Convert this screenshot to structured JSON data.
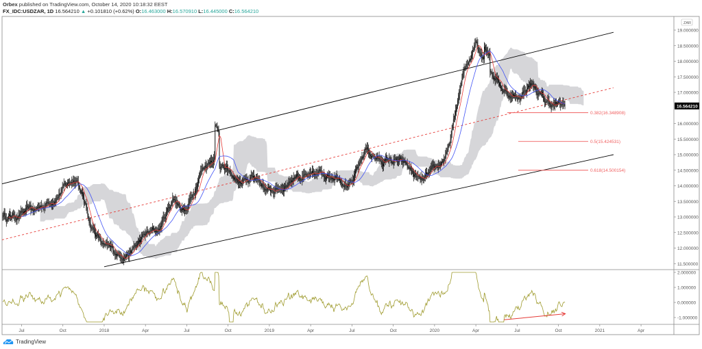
{
  "header": {
    "publisher": "Orbex",
    "published_text": "published on TradingView.com, October 14, 2020 10:18:32 EEST",
    "symbol": "FX_IDC:USDZAR, 1D",
    "last": "16.564210",
    "change": "+0.101810 (+0.62%)",
    "open_label": "O:",
    "open": "16.463000",
    "high_label": "H:",
    "high": "16.570910",
    "low_label": "L:",
    "low": "16.445000",
    "close_label": "C:",
    "close": "16.564210"
  },
  "footer": {
    "brand": "TradingView"
  },
  "colors": {
    "up_arrow": "#26a69a",
    "candles": "#000000",
    "ma_fast": "#e53935",
    "ma_slow": "#3f51f5",
    "cloud": "#c8c8cc",
    "channel": "#000000",
    "midline": "#e53935",
    "fib": "#f06060",
    "oscillator": "#9e9a2c",
    "divergence_arrow": "#e53935",
    "last_price_bg": "#000000"
  },
  "chart_data": {
    "type": "candlestick",
    "currency_label": "ZAR",
    "price_axis": {
      "ylim": [
        11.3,
        19.5
      ],
      "ticks": [
        "19.000000",
        "18.500000",
        "18.000000",
        "17.500000",
        "17.000000",
        "16.500000",
        "16.000000",
        "15.500000",
        "15.000000",
        "14.500000",
        "14.000000",
        "13.500000",
        "13.000000",
        "12.500000",
        "12.000000",
        "11.500000"
      ],
      "tick_values": [
        19.0,
        18.5,
        18.0,
        17.5,
        17.0,
        16.5,
        16.0,
        15.5,
        15.0,
        14.5,
        14.0,
        13.5,
        13.0,
        12.5,
        12.0,
        11.5
      ],
      "last_price_label": "16.564210",
      "last_price": 16.56421
    },
    "osc_axis": {
      "ylim": [
        -1.5,
        2.1
      ],
      "ticks": [
        "2.000000",
        "1.000000",
        "0.000000",
        "-1.000000"
      ],
      "tick_values": [
        2,
        1,
        0,
        -1
      ]
    },
    "x_ticks": [
      {
        "label": "Jul",
        "date": "2017-07"
      },
      {
        "label": "Oct",
        "date": "2017-10"
      },
      {
        "label": "2018",
        "date": "2018-01"
      },
      {
        "label": "Apr",
        "date": "2018-04"
      },
      {
        "label": "Jul",
        "date": "2018-07"
      },
      {
        "label": "Oct",
        "date": "2018-10"
      },
      {
        "label": "2019",
        "date": "2019-01"
      },
      {
        "label": "Apr",
        "date": "2019-04"
      },
      {
        "label": "Jul",
        "date": "2019-07"
      },
      {
        "label": "Oct",
        "date": "2019-10"
      },
      {
        "label": "2020",
        "date": "2020-01"
      },
      {
        "label": "Apr",
        "date": "2020-04"
      },
      {
        "label": "Jul",
        "date": "2020-07"
      },
      {
        "label": "Oct",
        "date": "2020-10"
      },
      {
        "label": "2021",
        "date": "2021-01"
      },
      {
        "label": "Apr",
        "date": "2021-04"
      }
    ],
    "monthly_close": [
      {
        "date": "2017-05",
        "close": 13.2
      },
      {
        "date": "2017-06",
        "close": 13.0
      },
      {
        "date": "2017-07",
        "close": 13.1
      },
      {
        "date": "2017-08",
        "close": 13.2
      },
      {
        "date": "2017-09",
        "close": 13.5
      },
      {
        "date": "2017-10",
        "close": 13.9
      },
      {
        "date": "2017-11",
        "close": 14.3
      },
      {
        "date": "2017-12",
        "close": 12.8
      },
      {
        "date": "2018-01",
        "close": 12.0
      },
      {
        "date": "2018-02",
        "close": 11.8
      },
      {
        "date": "2018-03",
        "close": 11.9
      },
      {
        "date": "2018-04",
        "close": 12.4
      },
      {
        "date": "2018-05",
        "close": 12.6
      },
      {
        "date": "2018-06",
        "close": 13.6
      },
      {
        "date": "2018-07",
        "close": 13.2
      },
      {
        "date": "2018-08",
        "close": 14.5
      },
      {
        "date": "2018-09",
        "close": 15.0
      },
      {
        "date": "2018-10",
        "close": 14.4
      },
      {
        "date": "2018-11",
        "close": 14.0
      },
      {
        "date": "2018-12",
        "close": 14.3
      },
      {
        "date": "2019-01",
        "close": 13.8
      },
      {
        "date": "2019-02",
        "close": 14.0
      },
      {
        "date": "2019-03",
        "close": 14.4
      },
      {
        "date": "2019-04",
        "close": 14.2
      },
      {
        "date": "2019-05",
        "close": 14.4
      },
      {
        "date": "2019-06",
        "close": 14.4
      },
      {
        "date": "2019-07",
        "close": 14.0
      },
      {
        "date": "2019-08",
        "close": 15.2
      },
      {
        "date": "2019-09",
        "close": 14.8
      },
      {
        "date": "2019-10",
        "close": 14.8
      },
      {
        "date": "2019-11",
        "close": 14.6
      },
      {
        "date": "2019-12",
        "close": 14.1
      },
      {
        "date": "2020-01",
        "close": 14.4
      },
      {
        "date": "2020-02",
        "close": 15.1
      },
      {
        "date": "2020-03",
        "close": 17.4
      },
      {
        "date": "2020-04",
        "close": 18.7
      },
      {
        "date": "2020-05",
        "close": 17.8
      },
      {
        "date": "2020-06",
        "close": 17.1
      },
      {
        "date": "2020-07",
        "close": 16.8
      },
      {
        "date": "2020-08",
        "close": 17.3
      },
      {
        "date": "2020-09",
        "close": 16.7
      },
      {
        "date": "2020-10",
        "close": 16.56
      }
    ],
    "channel": {
      "upper": [
        {
          "date": "2017-05",
          "price": 14.0
        },
        {
          "date": "2021-02",
          "price": 18.93
        }
      ],
      "lower": [
        {
          "date": "2018-01",
          "price": 11.4
        },
        {
          "date": "2021-02",
          "price": 15.0
        }
      ],
      "mid": [
        {
          "date": "2017-05",
          "price": 12.2
        },
        {
          "date": "2021-02",
          "price": 17.15
        }
      ]
    },
    "fib_levels": [
      {
        "label": "0.382(16.348908)",
        "value": 16.348908
      },
      {
        "label": "0.5(15.424531)",
        "value": 15.424531
      },
      {
        "label": "0.618(14.500154)",
        "value": 14.500154
      }
    ],
    "divergence_arrow": [
      {
        "date": "2020-06",
        "value": -1.15
      },
      {
        "date": "2020-10",
        "value": -0.75
      }
    ]
  }
}
